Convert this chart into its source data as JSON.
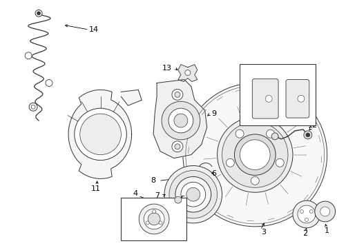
{
  "bg_color": "#ffffff",
  "line_color": "#333333",
  "lw": 0.7,
  "fs": 8
}
